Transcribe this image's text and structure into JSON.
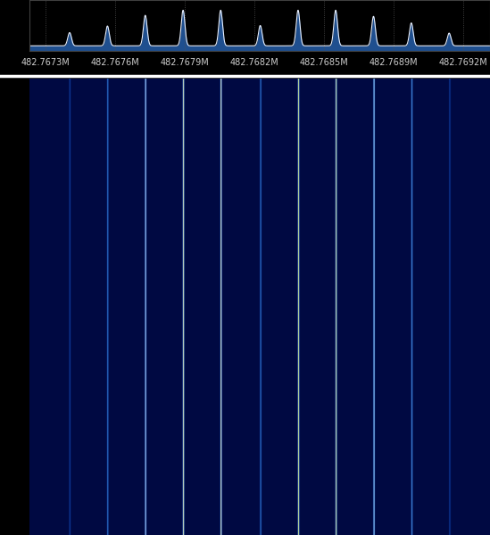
{
  "chart_data": {
    "type": "spectrum",
    "x": [
      482.767371,
      482.767545,
      482.767719,
      482.767893,
      482.768066,
      482.768248,
      482.768422,
      482.768595,
      482.768769,
      482.768943,
      482.769117
    ],
    "values": [
      36,
      49,
      70,
      80,
      80,
      50,
      80,
      80,
      68,
      55,
      35
    ],
    "noise_floor": 10,
    "color": "#1f4f8f",
    "xlim": [
      482.767186,
      482.769305
    ],
    "xticks": [
      {
        "value": 482.76726,
        "label": "482.7673M"
      },
      {
        "value": 482.76758,
        "label": "482.7676M"
      },
      {
        "value": 482.7679,
        "label": "482.7679M"
      },
      {
        "value": 482.76822,
        "label": "482.7682M"
      },
      {
        "value": 482.76854,
        "label": "482.7685M"
      },
      {
        "value": 482.76886,
        "label": "482.7689M"
      },
      {
        "value": 482.76918,
        "label": "482.7692M"
      }
    ],
    "ylim": [
      0,
      100
    ],
    "grid": true,
    "tick_labels": "x"
  }
}
